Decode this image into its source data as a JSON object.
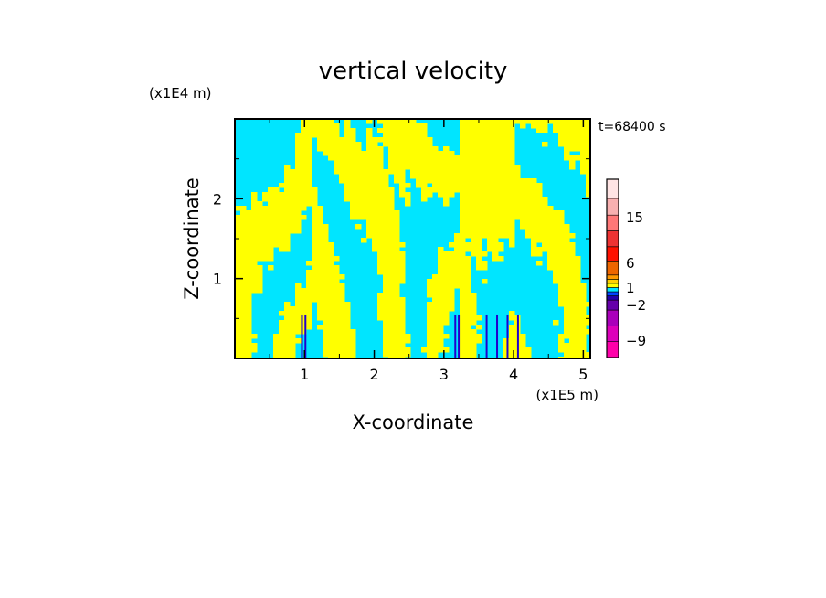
{
  "chart_data": {
    "type": "heatmap",
    "title": "vertical velocity",
    "xlabel": "X-coordinate",
    "ylabel": "Z-coordinate",
    "x_scale_label": "(x1E5 m)",
    "y_scale_label": "(x1E4 m)",
    "time_label": "t=68400 s",
    "xlim": [
      0,
      5.1
    ],
    "ylim": [
      0,
      3.0
    ],
    "x_ticks": [
      1,
      2,
      3,
      4,
      5
    ],
    "x_tick_labels": [
      "1",
      "2",
      "3",
      "4",
      "5"
    ],
    "y_ticks": [
      1,
      2
    ],
    "y_tick_labels": [
      "1",
      "2"
    ],
    "colorbar": {
      "levels": [
        {
          "color": "#ff00aa"
        },
        {
          "color": "#dd00bb"
        },
        {
          "color": "#aa00bb"
        },
        {
          "color": "#6600aa"
        },
        {
          "color": "#2200aa"
        },
        {
          "color": "#0044ff"
        },
        {
          "color": "#00e5ff"
        },
        {
          "color": "#ffff00"
        },
        {
          "color": "#ffd000"
        },
        {
          "color": "#ff9900"
        },
        {
          "color": "#ee6600"
        },
        {
          "color": "#ff1100"
        },
        {
          "color": "#ee3333"
        },
        {
          "color": "#ff7777"
        },
        {
          "color": "#f8b0b0"
        },
        {
          "color": "#ffe4e4"
        }
      ],
      "labels": [
        {
          "text": "15",
          "value": 15
        },
        {
          "text": "6",
          "value": 6
        },
        {
          "text": "1",
          "value": 1
        },
        {
          "text": "−2",
          "value": -2
        },
        {
          "text": "−9",
          "value": -9
        }
      ]
    },
    "field": {
      "positive_color": "#ffff00",
      "negative_color": "#00e5ff",
      "strong_negative_color": "#2200cc",
      "frame_color": "#000000"
    }
  }
}
